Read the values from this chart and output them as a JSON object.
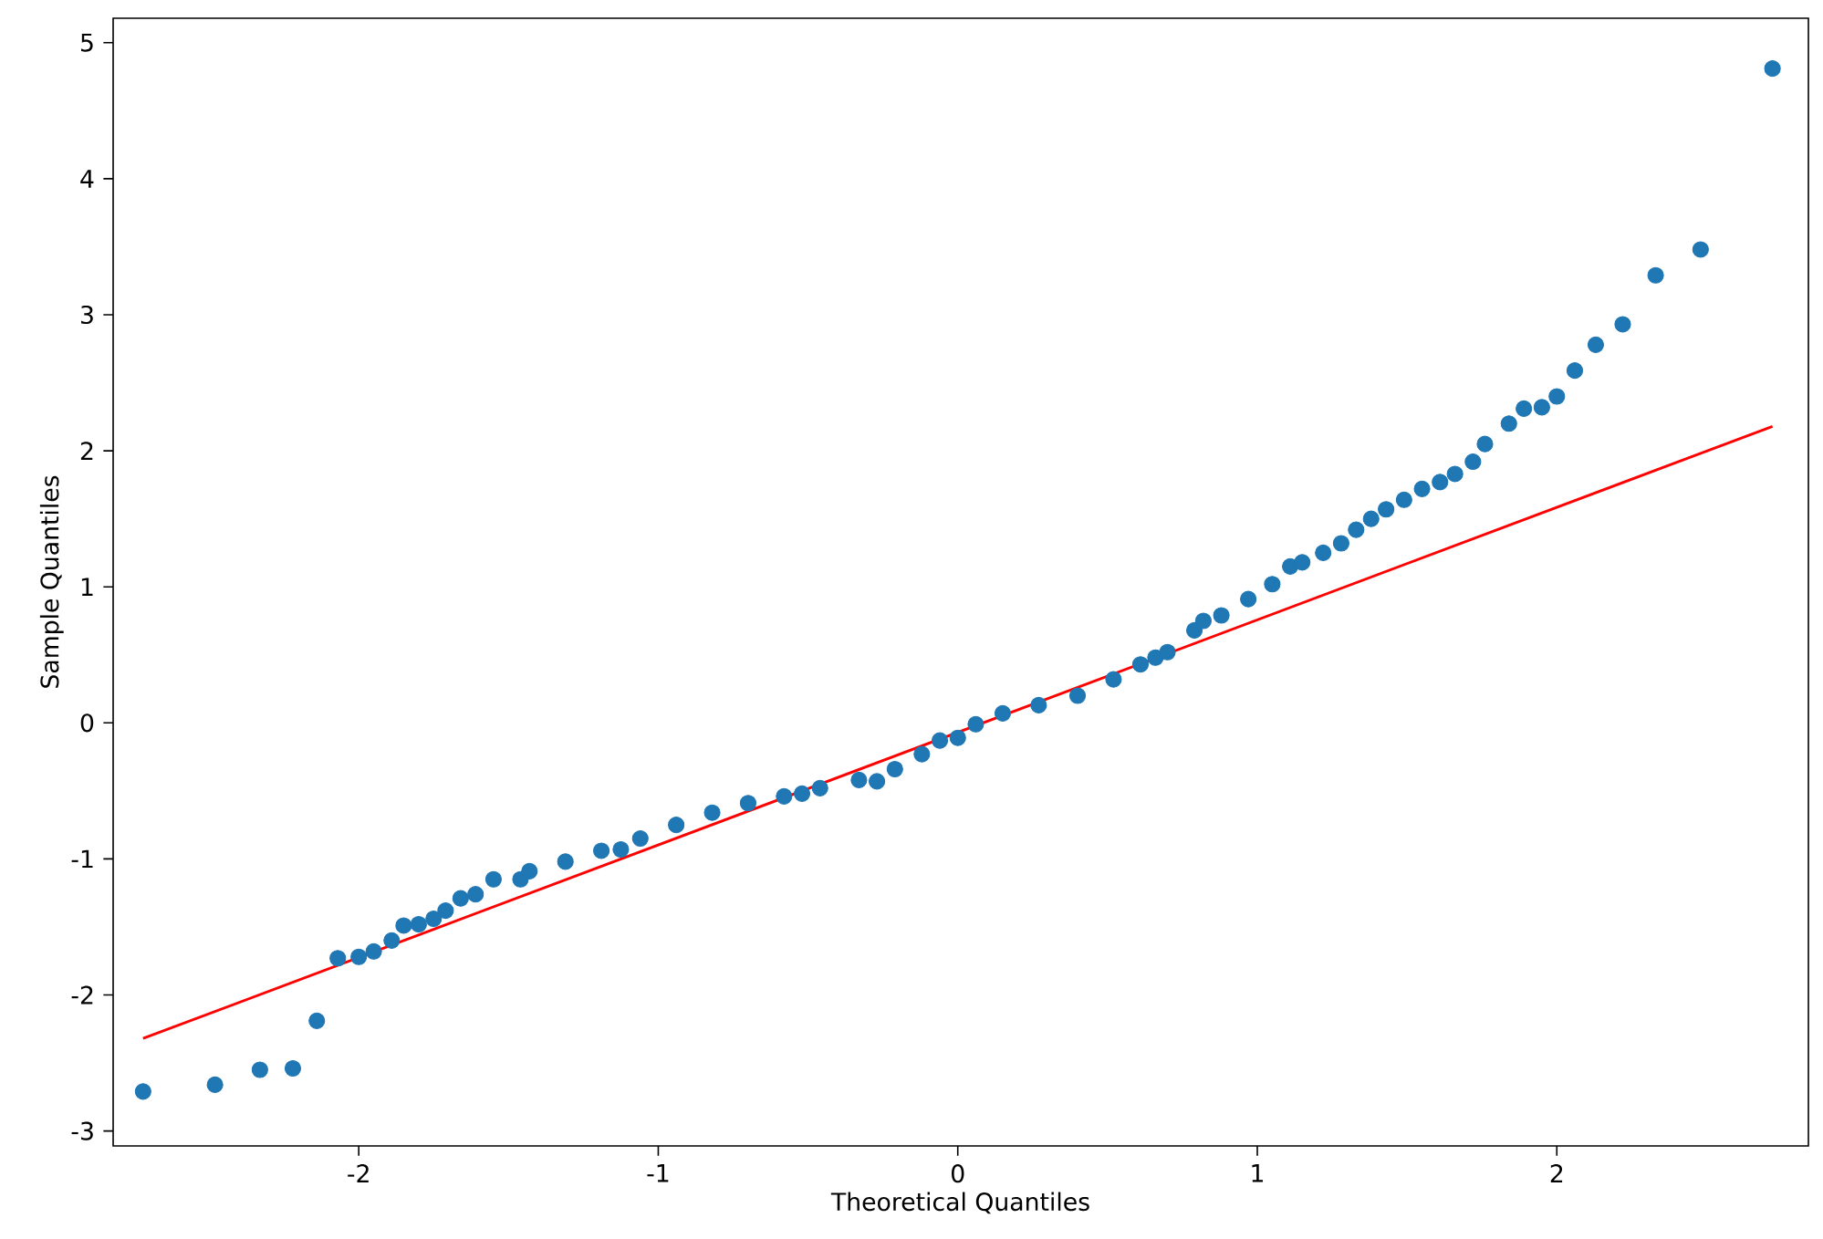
{
  "chart_data": {
    "type": "scatter",
    "xlabel": "Theoretical Quantiles",
    "ylabel": "Sample Quantiles",
    "xlim": [
      -2.82,
      2.84
    ],
    "ylim": [
      -3.11,
      5.18
    ],
    "xticks": [
      -2,
      -1,
      0,
      1,
      2
    ],
    "yticks": [
      -3,
      -2,
      -1,
      0,
      1,
      2,
      3,
      4,
      5
    ],
    "grid": false,
    "series": [
      {
        "color": "#1f77b4",
        "marker": "circle",
        "x": [
          -2.72,
          -2.48,
          -2.33,
          -2.22,
          -2.14,
          -2.07,
          -2.0,
          -1.95,
          -1.89,
          -1.85,
          -1.8,
          -1.75,
          -1.71,
          -1.66,
          -1.61,
          -1.55,
          -1.46,
          -1.43,
          -1.31,
          -1.19,
          -1.125,
          -1.06,
          -0.94,
          -0.82,
          -0.7,
          -0.58,
          -0.52,
          -0.46,
          -0.33,
          -0.27,
          -0.21,
          -0.12,
          -0.06,
          0.0,
          0.06,
          0.15,
          0.27,
          0.4,
          0.52,
          0.61,
          0.66,
          0.7,
          0.79,
          0.82,
          0.88,
          0.97,
          1.05,
          1.11,
          1.15,
          1.22,
          1.28,
          1.33,
          1.38,
          1.43,
          1.49,
          1.55,
          1.61,
          1.66,
          1.72,
          1.76,
          1.84,
          1.89,
          1.95,
          2.0,
          2.06,
          2.13,
          2.22,
          2.33,
          2.48,
          2.72
        ],
        "values": [
          -2.71,
          -2.66,
          -2.55,
          -2.54,
          -2.19,
          -1.73,
          -1.72,
          -1.68,
          -1.6,
          -1.49,
          -1.48,
          -1.44,
          -1.38,
          -1.29,
          -1.26,
          -1.15,
          -1.15,
          -1.09,
          -1.02,
          -0.94,
          -0.93,
          -0.85,
          -0.75,
          -0.66,
          -0.59,
          -0.54,
          -0.52,
          -0.48,
          -0.42,
          -0.43,
          -0.34,
          -0.23,
          -0.13,
          -0.11,
          -0.01,
          0.07,
          0.13,
          0.2,
          0.32,
          0.43,
          0.48,
          0.52,
          0.68,
          0.75,
          0.79,
          0.91,
          1.02,
          1.15,
          1.18,
          1.25,
          1.32,
          1.42,
          1.5,
          1.57,
          1.64,
          1.72,
          1.77,
          1.83,
          1.92,
          2.05,
          2.2,
          2.31,
          2.32,
          2.4,
          2.59,
          2.78,
          2.93,
          3.29,
          3.48,
          4.81
        ]
      },
      {
        "type": "line",
        "color": "#ff0000",
        "marker": "none",
        "x": [
          -2.72,
          2.72
        ],
        "values": [
          -2.32,
          2.18
        ]
      }
    ]
  }
}
